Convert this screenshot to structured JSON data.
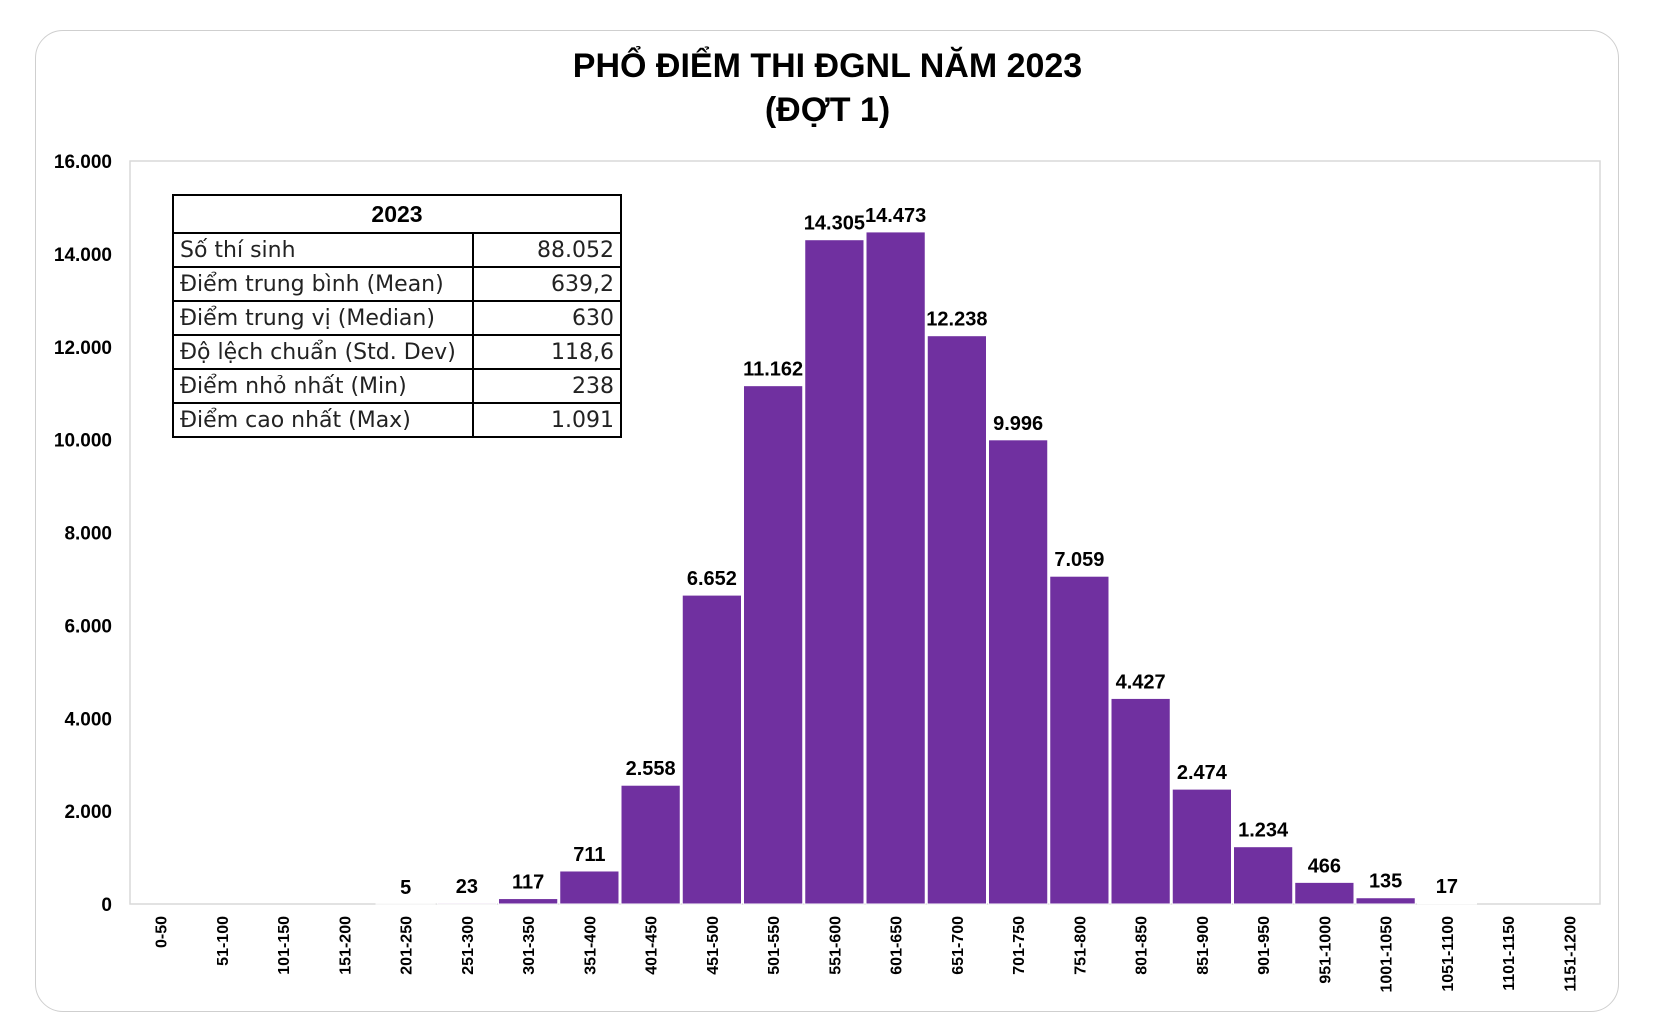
{
  "chart_data": {
    "type": "bar",
    "title_lines": [
      "PHỔ ĐIỂM THI ĐGNL NĂM 2023",
      "(ĐỢT 1)"
    ],
    "xlabel": "",
    "ylabel": "",
    "ylim": [
      0,
      16000
    ],
    "yticks": [
      0,
      2000,
      4000,
      6000,
      8000,
      10000,
      12000,
      14000,
      16000
    ],
    "ytick_labels": [
      "0",
      "2.000",
      "4.000",
      "6.000",
      "8.000",
      "10.000",
      "12.000",
      "14.000",
      "16.000"
    ],
    "categories": [
      "0-50",
      "51-100",
      "101-150",
      "151-200",
      "201-250",
      "251-300",
      "301-350",
      "351-400",
      "401-450",
      "451-500",
      "501-550",
      "551-600",
      "601-650",
      "651-700",
      "701-750",
      "751-800",
      "801-850",
      "851-900",
      "901-950",
      "951-1000",
      "1001-1050",
      "1051-1100",
      "1101-1150",
      "1151-1200"
    ],
    "values": [
      0,
      0,
      0,
      0,
      5,
      23,
      117,
      711,
      2558,
      6652,
      11162,
      14305,
      14473,
      12238,
      9996,
      7059,
      4427,
      2474,
      1234,
      466,
      135,
      17,
      0,
      0
    ],
    "value_labels": [
      "",
      "",
      "",
      "",
      "5",
      "23",
      "117",
      "711",
      "2.558",
      "6.652",
      "11.162",
      "14.305",
      "14.473",
      "12.238",
      "9.996",
      "7.059",
      "4.427",
      "2.474",
      "1.234",
      "466",
      "135",
      "17",
      "",
      ""
    ],
    "bar_color": "#7030a0",
    "grid": false,
    "legend": "none"
  },
  "stats_table": {
    "header": "2023",
    "rows": [
      {
        "label": "Số thí sinh",
        "value": "88.052"
      },
      {
        "label": "Điểm trung bình (Mean)",
        "value": "639,2"
      },
      {
        "label": "Điểm trung vị (Median)",
        "value": "630"
      },
      {
        "label": "Độ lệch chuẩn (Std. Dev)",
        "value": "118,6"
      },
      {
        "label": "Điểm nhỏ nhất (Min)",
        "value": "238"
      },
      {
        "label": "Điểm cao nhất (Max)",
        "value": "1.091"
      }
    ]
  }
}
